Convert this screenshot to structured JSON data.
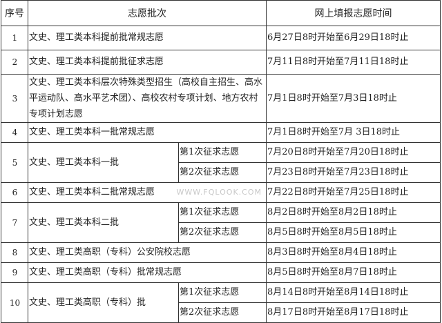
{
  "headers": {
    "seq": "序号",
    "batch": "志愿批次",
    "time": "网上填报志愿时间"
  },
  "rows": [
    {
      "seq": "1",
      "batch": "文史、理工类本科提前批常规志愿",
      "time": "6月27日8时开始至6月29日18时止"
    },
    {
      "seq": "2",
      "batch": "文史、理工类本科提前批征求志愿",
      "time": "7月11日8时开始至7月11日18时止"
    },
    {
      "seq": "3",
      "batch": "文史、理工类本科层次特殊类型招生（高校自主招生、高水平运动队、高水平艺术团）、高校农村专项计划、地方农村专项计划志愿",
      "time": "7月1日8时开始至7月3日18时止"
    },
    {
      "seq": "4",
      "batch": "文史、理工类本科一批常规志愿",
      "time": "7月1日8时开始至7月 3日18时止"
    },
    {
      "seq": "5",
      "batch": "文史、理工类本科一批",
      "sub": [
        {
          "label": "第1次征求志愿",
          "time": "7月20日8时开始至7月20日18时止"
        },
        {
          "label": "第2次征求志愿",
          "time": "7月23日8时开始至7月23日18时止"
        }
      ]
    },
    {
      "seq": "6",
      "batch": "文史、理工类本科二批常规志愿",
      "time": "7月22日8时开始至7月25日18时止"
    },
    {
      "seq": "7",
      "batch": "文史、理工类本科二批",
      "sub": [
        {
          "label": "第1次征求志愿",
          "time": "8月2日8时开始至8月2日18时止"
        },
        {
          "label": "第2次征求志愿",
          "time": "8月5日8时开始至8月5日18时止"
        }
      ]
    },
    {
      "seq": "8",
      "batch": "文史、理工类高职（专科）公安院校志愿",
      "time": "8月3日8时开始至8月4日18时止"
    },
    {
      "seq": "9",
      "batch": "文史、理工类高职（专科）批常规志愿",
      "time": "8月5日8时开始至8月7日18时止"
    },
    {
      "seq": "10",
      "batch": "文史、理工类高职（专科）批",
      "sub": [
        {
          "label": "第1次征求志愿",
          "time": "8月14日8时开始至8月14日18时止"
        },
        {
          "label": "第2次征求志愿",
          "time": "8月17日8时开始至8月17日18时止"
        }
      ]
    }
  ],
  "watermark": "WWW.FQLOOK.COM"
}
